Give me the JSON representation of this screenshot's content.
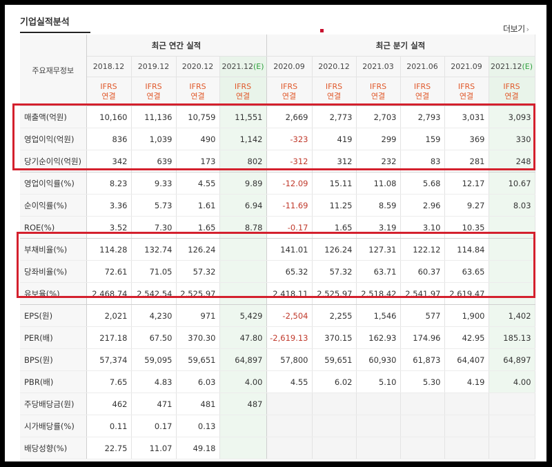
{
  "title": "기업실적분석",
  "more_label": "더보기",
  "more_icon": "chevron-right-icon",
  "corner_label": "주요재무정보",
  "groups": {
    "annual": "최근 연간 실적",
    "quarterly": "최근 분기 실적"
  },
  "periods": [
    {
      "label": "2018.12",
      "est": false,
      "ifrs": "IFRS",
      "basis": "연결"
    },
    {
      "label": "2019.12",
      "est": false,
      "ifrs": "IFRS",
      "basis": "연결"
    },
    {
      "label": "2020.12",
      "est": false,
      "ifrs": "IFRS",
      "basis": "연결"
    },
    {
      "label": "2021.12",
      "est": true,
      "ifrs": "IFRS",
      "basis": "연결"
    },
    {
      "label": "2020.09",
      "est": false,
      "ifrs": "IFRS",
      "basis": "연결"
    },
    {
      "label": "2020.12",
      "est": false,
      "ifrs": "IFRS",
      "basis": "연결"
    },
    {
      "label": "2021.03",
      "est": false,
      "ifrs": "IFRS",
      "basis": "연결"
    },
    {
      "label": "2021.06",
      "est": false,
      "ifrs": "IFRS",
      "basis": "연결"
    },
    {
      "label": "2021.09",
      "est": false,
      "ifrs": "IFRS",
      "basis": "연결"
    },
    {
      "label": "2021.12",
      "est": true,
      "ifrs": "IFRS",
      "basis": "연결"
    }
  ],
  "est_mark": "(E)",
  "rows": [
    {
      "label": "매출액(억원)",
      "values": [
        "10,160",
        "11,136",
        "10,759",
        "11,551",
        "2,669",
        "2,773",
        "2,703",
        "2,793",
        "3,031",
        "3,093"
      ]
    },
    {
      "label": "영업이익(억원)",
      "values": [
        "836",
        "1,039",
        "490",
        "1,142",
        "-323",
        "419",
        "299",
        "159",
        "369",
        "330"
      ]
    },
    {
      "label": "당기순이익(억원)",
      "values": [
        "342",
        "639",
        "173",
        "802",
        "-312",
        "312",
        "232",
        "83",
        "281",
        "248"
      ]
    },
    {
      "label": "영업이익률(%)",
      "values": [
        "8.23",
        "9.33",
        "4.55",
        "9.89",
        "-12.09",
        "15.11",
        "11.08",
        "5.68",
        "12.17",
        "10.67"
      ]
    },
    {
      "label": "순이익률(%)",
      "values": [
        "3.36",
        "5.73",
        "1.61",
        "6.94",
        "-11.69",
        "11.25",
        "8.59",
        "2.96",
        "9.27",
        "8.03"
      ]
    },
    {
      "label": "ROE(%)",
      "values": [
        "3.52",
        "7.30",
        "1.65",
        "8.78",
        "-0.17",
        "1.65",
        "3.19",
        "3.10",
        "10.35",
        ""
      ]
    },
    {
      "label": "부채비율(%)",
      "values": [
        "114.28",
        "132.74",
        "126.24",
        "",
        "141.01",
        "126.24",
        "127.31",
        "122.12",
        "114.84",
        ""
      ]
    },
    {
      "label": "당좌비율(%)",
      "values": [
        "72.61",
        "71.05",
        "57.32",
        "",
        "65.32",
        "57.32",
        "63.71",
        "60.37",
        "63.65",
        ""
      ]
    },
    {
      "label": "유보율(%)",
      "values": [
        "2,468.74",
        "2,542.54",
        "2,525.97",
        "",
        "2,418.11",
        "2,525.97",
        "2,518.42",
        "2,541.97",
        "2,619.47",
        ""
      ]
    },
    {
      "label": "EPS(원)",
      "values": [
        "2,021",
        "4,230",
        "971",
        "5,429",
        "-2,504",
        "2,255",
        "1,546",
        "577",
        "1,900",
        "1,402"
      ]
    },
    {
      "label": "PER(배)",
      "values": [
        "217.18",
        "67.50",
        "370.30",
        "47.80",
        "-2,619.13",
        "370.15",
        "162.93",
        "174.96",
        "42.95",
        "185.13"
      ]
    },
    {
      "label": "BPS(원)",
      "values": [
        "57,374",
        "59,095",
        "59,651",
        "64,897",
        "57,800",
        "59,651",
        "60,930",
        "61,873",
        "64,407",
        "64,897"
      ]
    },
    {
      "label": "PBR(배)",
      "values": [
        "7.65",
        "4.83",
        "6.03",
        "4.00",
        "4.55",
        "6.02",
        "5.10",
        "5.30",
        "4.19",
        "4.00"
      ]
    },
    {
      "label": "주당배당금(원)",
      "values": [
        "462",
        "471",
        "481",
        "487",
        "",
        "",
        "",
        "",
        "",
        ""
      ],
      "q_gray": true
    },
    {
      "label": "시가배당률(%)",
      "values": [
        "0.11",
        "0.17",
        "0.13",
        "",
        "",
        "",
        "",
        "",
        "",
        ""
      ],
      "q_gray": true
    },
    {
      "label": "배당성향(%)",
      "values": [
        "22.75",
        "11.07",
        "49.18",
        "",
        "",
        "",
        "",
        "",
        "",
        ""
      ],
      "q_gray": true
    }
  ]
}
